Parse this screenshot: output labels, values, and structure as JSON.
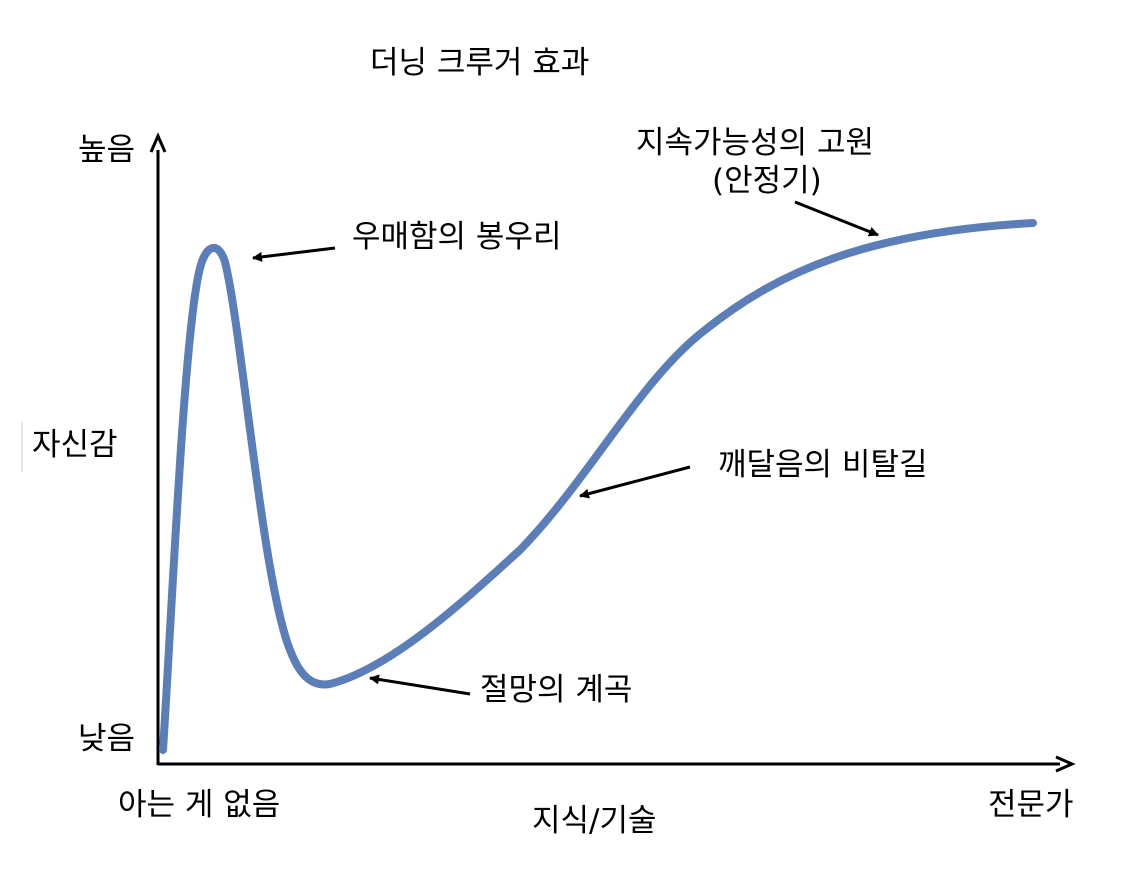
{
  "title": "더닝 크루거 효과",
  "y_axis": {
    "label": "자신감",
    "high": "높음",
    "low": "낮음"
  },
  "x_axis": {
    "label": "지식/기술",
    "start": "아는 게 없음",
    "end": "전문가"
  },
  "annotations": {
    "peak": "우매함의 봉우리",
    "valley": "절망의 계곡",
    "slope": "깨달음의 비탈길",
    "plateau_line1": "지속가능성의 고원",
    "plateau_line2": "(안정기)"
  },
  "colors": {
    "curve": "#5b7db8",
    "axis": "#000000",
    "text": "#000000"
  }
}
